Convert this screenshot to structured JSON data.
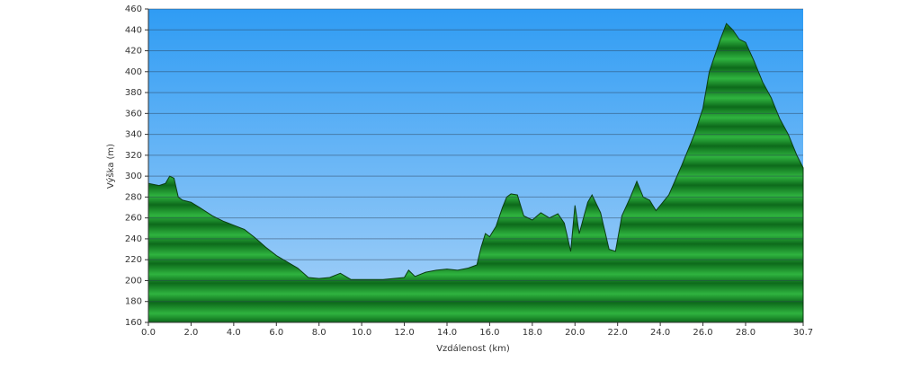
{
  "chart_data": {
    "type": "area",
    "x_label": "Vzdálenost (km)",
    "y_label": "Výška (m)",
    "x": [
      0,
      0.5,
      0.8,
      1.0,
      1.2,
      1.4,
      1.6,
      2.0,
      2.4,
      3.0,
      3.5,
      4.0,
      4.5,
      5.0,
      5.5,
      6.0,
      6.5,
      7.0,
      7.5,
      8.0,
      8.5,
      9.0,
      9.5,
      10.0,
      10.5,
      11.0,
      11.5,
      12.0,
      12.2,
      12.5,
      13.0,
      13.5,
      14.0,
      14.5,
      15.0,
      15.4,
      15.6,
      15.8,
      16.0,
      16.3,
      16.6,
      16.8,
      17.0,
      17.3,
      17.6,
      18.0,
      18.4,
      18.8,
      19.2,
      19.5,
      19.8,
      20.0,
      20.2,
      20.6,
      20.8,
      21.2,
      21.6,
      21.9,
      22.2,
      22.6,
      22.9,
      23.2,
      23.5,
      23.8,
      24.4,
      25.0,
      25.6,
      26.0,
      26.3,
      26.8,
      27.1,
      27.4,
      27.7,
      28.0,
      28.4,
      28.8,
      29.2,
      29.6,
      30.0,
      30.4,
      30.7
    ],
    "values": [
      293,
      291,
      293,
      300,
      298,
      280,
      277,
      275,
      270,
      262,
      257,
      253,
      249,
      241,
      232,
      224,
      218,
      212,
      203,
      202,
      203,
      207,
      201,
      201,
      201,
      201,
      202,
      203,
      210,
      204,
      208,
      210,
      211,
      210,
      212,
      215,
      232,
      245,
      242,
      252,
      270,
      280,
      283,
      282,
      262,
      258,
      265,
      260,
      264,
      255,
      228,
      272,
      245,
      275,
      282,
      265,
      230,
      228,
      262,
      280,
      295,
      280,
      277,
      267,
      282,
      310,
      340,
      365,
      400,
      430,
      446,
      440,
      431,
      428,
      410,
      390,
      375,
      355,
      340,
      320,
      308
    ],
    "color": "#1f9a2e",
    "xlim": [
      0,
      30.7
    ],
    "xticks": [
      {
        "value": 0,
        "label": "0.0"
      },
      {
        "value": 2,
        "label": "2.0"
      },
      {
        "value": 4,
        "label": "4.0"
      },
      {
        "value": 6,
        "label": "6.0"
      },
      {
        "value": 8,
        "label": "8.0"
      },
      {
        "value": 10,
        "label": "10.0"
      },
      {
        "value": 12,
        "label": "12.0"
      },
      {
        "value": 14,
        "label": "14.0"
      },
      {
        "value": 16,
        "label": "16.0"
      },
      {
        "value": 18,
        "label": "18.0"
      },
      {
        "value": 20,
        "label": "20.0"
      },
      {
        "value": 22,
        "label": "22.0"
      },
      {
        "value": 24,
        "label": "24.0"
      },
      {
        "value": 26,
        "label": "26.0"
      },
      {
        "value": 28,
        "label": "28.0"
      },
      30.7
    ],
    "ylim": [
      160,
      460
    ],
    "yticks": [
      160,
      180,
      200,
      220,
      240,
      260,
      280,
      300,
      320,
      340,
      360,
      380,
      400,
      420,
      440,
      460
    ],
    "grid": true
  }
}
